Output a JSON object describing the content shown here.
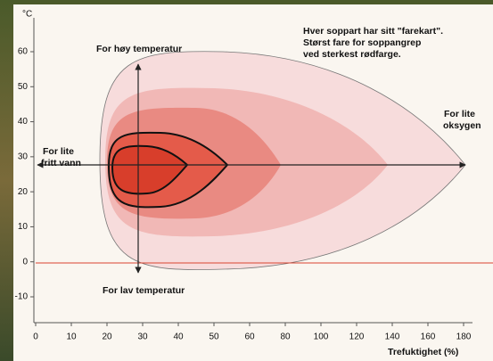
{
  "axis": {
    "y_unit": "°C",
    "x_label": "Trefuktighet (%)",
    "xticks": [
      0,
      10,
      20,
      30,
      40,
      50,
      60,
      80,
      100,
      120,
      140,
      160,
      180
    ],
    "yticks": [
      60,
      50,
      40,
      30,
      20,
      10,
      0,
      -10
    ]
  },
  "labels": {
    "high_temp": "For høy temperatur",
    "low_temp": "For lav temperatur",
    "dry": [
      "For lite",
      "fritt vann"
    ],
    "oxygen": [
      "For lite",
      "oksygen"
    ]
  },
  "note": [
    "Hver soppart har sitt \"farekart\".",
    "Størst fare for soppangrep",
    "ved sterkest rødfarge."
  ]
}
